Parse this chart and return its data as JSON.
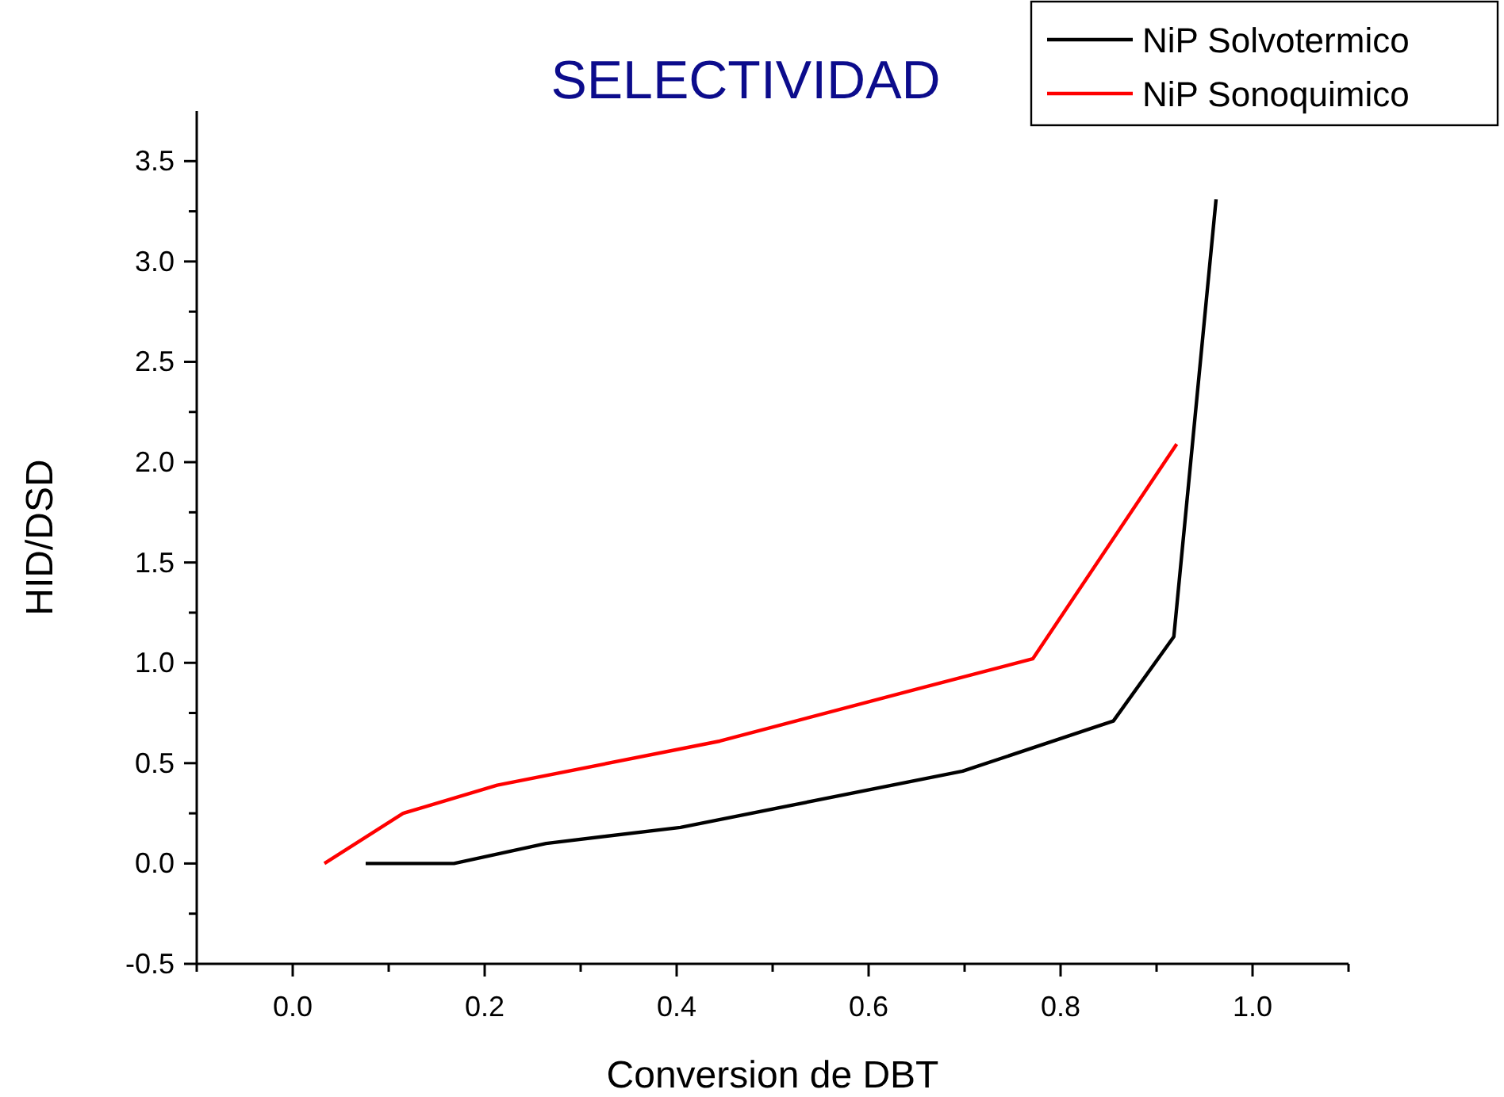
{
  "chart_data": {
    "type": "line",
    "title": "SELECTIVIDAD",
    "xlabel": "Conversion de DBT",
    "ylabel": "HID/DSD",
    "xlim": [
      -0.1,
      1.1
    ],
    "ylim": [
      -0.5,
      3.75
    ],
    "xticks": [
      {
        "value": -0.1,
        "label": null
      },
      {
        "value": 0,
        "label": "0.0"
      },
      {
        "value": 0.1,
        "label": null
      },
      0.2,
      {
        "value": 0.3,
        "label": null
      },
      0.4,
      {
        "value": 0.5,
        "label": null
      },
      0.6,
      {
        "value": 0.7,
        "label": null
      },
      0.8,
      {
        "value": 0.9,
        "label": null
      },
      {
        "value": 1,
        "label": "1.0"
      },
      {
        "value": 1.1,
        "label": null
      }
    ],
    "yticks": [
      -0.5,
      {
        "value": -0.25,
        "label": null
      },
      {
        "value": 0,
        "label": "0.0"
      },
      {
        "value": 0.25,
        "label": null
      },
      0.5,
      {
        "value": 0.75,
        "label": null
      },
      {
        "value": 1,
        "label": "1.0"
      },
      {
        "value": 1.25,
        "label": null
      },
      1.5,
      {
        "value": 1.75,
        "label": null
      },
      {
        "value": 2,
        "label": "2.0"
      },
      {
        "value": 2.25,
        "label": null
      },
      2.5,
      {
        "value": 2.75,
        "label": null
      },
      {
        "value": 3,
        "label": "3.0"
      },
      {
        "value": 3.25,
        "label": null
      },
      3.5
    ],
    "legend": "top right",
    "grid": false,
    "line_style": "solid",
    "series": [
      {
        "name": "NiP Solvotermico",
        "color": "#000000",
        "x": [
          0.076,
          0.168,
          0.264,
          0.404,
          0.698,
          0.855,
          0.918,
          0.962
        ],
        "values": [
          0.0,
          0.0,
          0.1,
          0.18,
          0.46,
          0.71,
          1.13,
          3.31
        ]
      },
      {
        "name": "NiP Sonoquimico",
        "color": "#ff0000",
        "x": [
          0.033,
          0.115,
          0.213,
          0.445,
          0.651,
          0.771,
          0.921
        ],
        "values": [
          0.0,
          0.25,
          0.39,
          0.61,
          0.87,
          1.02,
          2.09
        ]
      }
    ]
  }
}
